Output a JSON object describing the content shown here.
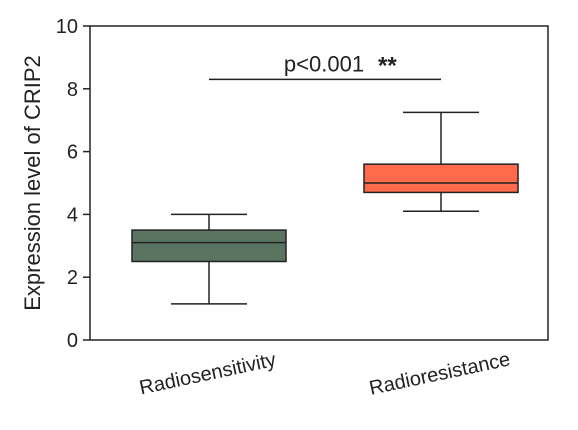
{
  "chart_data": {
    "type": "box",
    "ylabel": "Expression level of CRIP2",
    "ylim": [
      0,
      10
    ],
    "yticks": [
      "0",
      "2",
      "4",
      "6",
      "8",
      "10"
    ],
    "categories": [
      "Radiosensitivity",
      "Radioresistance"
    ],
    "boxes": [
      {
        "category": "Radiosensitivity",
        "min": 1.15,
        "q1": 2.5,
        "median": 3.1,
        "q3": 3.5,
        "max": 4.0,
        "color": "#5a7462"
      },
      {
        "category": "Radioresistance",
        "min": 4.1,
        "q1": 4.7,
        "median": 5.0,
        "q3": 5.6,
        "max": 7.25,
        "color": "#ff6a4d"
      }
    ],
    "significance": {
      "bracket_y": 8.3,
      "label": "p<0.001",
      "stars": "**"
    }
  }
}
